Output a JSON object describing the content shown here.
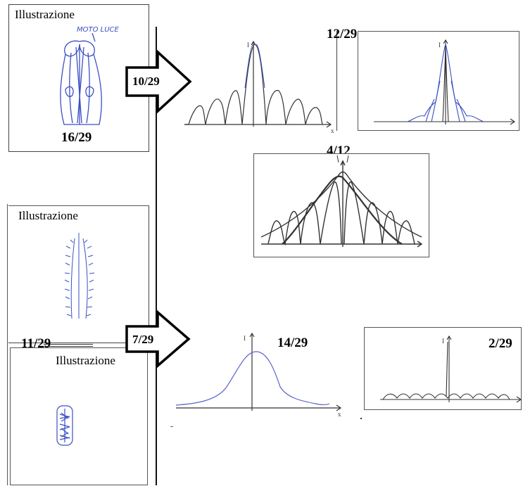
{
  "drawings": [
    {
      "label": "Illustrazione",
      "score": "16/29",
      "note": "MOTO LUCE"
    },
    {
      "label": "Illustrazione",
      "score": "11/29"
    },
    {
      "label": "Illustrazione"
    }
  ],
  "arrows": [
    {
      "label": "10/29"
    },
    {
      "label": "7/29"
    }
  ],
  "graphs": [
    {
      "score": "12/29"
    },
    {
      "score": "4/12"
    },
    {
      "score": "14/29"
    },
    {
      "score": "2/29"
    }
  ],
  "axis_letters": {
    "y": "I",
    "x": "x"
  },
  "colors": {
    "blue_ink": "#3b4fc4",
    "pencil": "#333333",
    "border": "#444444"
  }
}
